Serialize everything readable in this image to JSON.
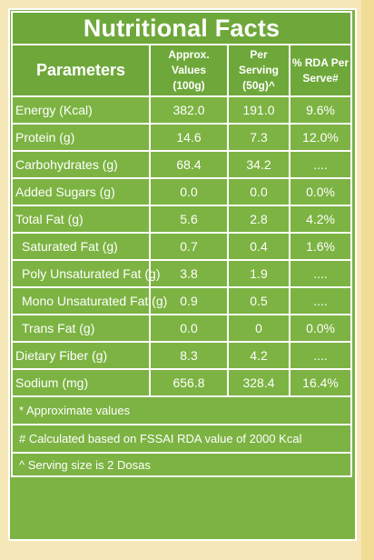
{
  "title": "Nutritional Facts",
  "headers": {
    "parameters": "Parameters",
    "approx_line1": "Approx. Values",
    "approx_line2": "(100g)",
    "serving_line1": "Per Serving",
    "serving_line2": "(50g)^",
    "rda_line1": "% RDA Per",
    "rda_line2": "Serve#"
  },
  "rows": [
    {
      "name": "Energy (Kcal)",
      "approx": "382.0",
      "serving": "191.0",
      "rda": "9.6%"
    },
    {
      "name": "Protein (g)",
      "approx": "14.6",
      "serving": "7.3",
      "rda": "12.0%"
    },
    {
      "name": "Carbohydrates (g)",
      "approx": "68.4",
      "serving": "34.2",
      "rda": "...."
    },
    {
      "name": "Added Sugars (g)",
      "approx": "0.0",
      "serving": "0.0",
      "rda": "0.0%"
    },
    {
      "name": "Total Fat (g)",
      "approx": "5.6",
      "serving": "2.8",
      "rda": "4.2%"
    },
    {
      "name": "Saturated Fat (g)",
      "approx": "0.7",
      "serving": "0.4",
      "rda": "1.6%"
    },
    {
      "name": "Poly Unsaturated Fat (g)",
      "approx": "3.8",
      "serving": "1.9",
      "rda": "...."
    },
    {
      "name": "Mono Unsaturated Fat (g)",
      "approx": "0.9",
      "serving": "0.5",
      "rda": "...."
    },
    {
      "name": "Trans Fat (g)",
      "approx": "0.0",
      "serving": "0",
      "rda": "0.0%"
    },
    {
      "name": "Dietary Fiber (g)",
      "approx": "8.3",
      "serving": "4.2",
      "rda": "...."
    },
    {
      "name": "Sodium (mg)",
      "approx": "656.8",
      "serving": "328.4",
      "rda": "16.4%"
    }
  ],
  "notes": [
    "* Approximate values",
    "# Calculated based on FSSAI RDA value of 2000 Kcal",
    "^ Serving size is 2 Dosas"
  ],
  "colors": {
    "background": "#f6e7b9",
    "panel_green": "#7cb342",
    "header_green": "#6fa83a",
    "text": "#ffffff"
  }
}
